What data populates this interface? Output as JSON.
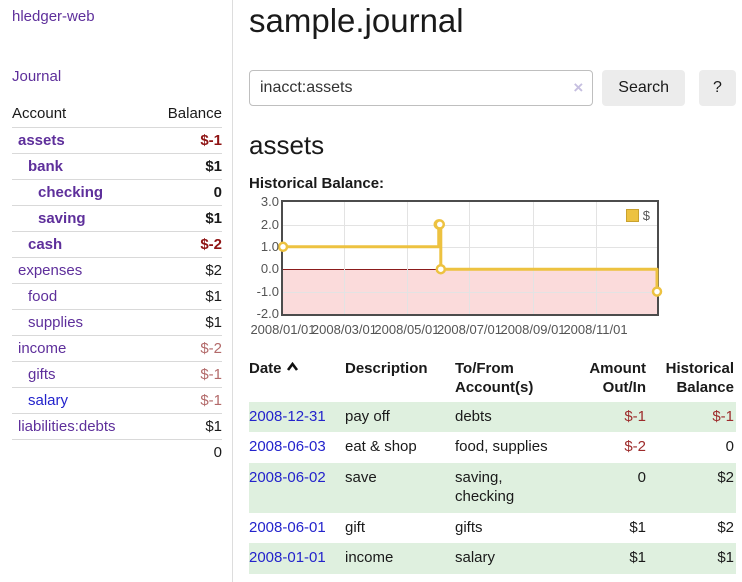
{
  "sidebar": {
    "brand": "hledger-web",
    "nav": {
      "journal": "Journal"
    },
    "accounts_table": {
      "col_account": "Account",
      "col_balance": "Balance",
      "accounts": [
        {
          "name": "assets",
          "balance": "$-1",
          "level": 1,
          "bold": true,
          "balance_style": "neg-strong"
        },
        {
          "name": "bank",
          "balance": "$1",
          "level": 2,
          "bold": true,
          "balance_style": "pos"
        },
        {
          "name": "checking",
          "balance": "0",
          "level": 3,
          "bold": true,
          "balance_style": "pos"
        },
        {
          "name": "saving",
          "balance": "$1",
          "level": 3,
          "bold": true,
          "balance_style": "pos"
        },
        {
          "name": "cash",
          "balance": "$-2",
          "level": 2,
          "bold": true,
          "balance_style": "neg-strong"
        },
        {
          "name": "expenses",
          "balance": "$2",
          "level": 1,
          "bold": false,
          "balance_style": "pos"
        },
        {
          "name": "food",
          "balance": "$1",
          "level": 2,
          "bold": false,
          "balance_style": "pos"
        },
        {
          "name": "supplies",
          "balance": "$1",
          "level": 2,
          "bold": false,
          "balance_style": "pos"
        },
        {
          "name": "income",
          "balance": "$-2",
          "level": 1,
          "bold": false,
          "balance_style": "neg-soft"
        },
        {
          "name": "gifts",
          "balance": "$-1",
          "level": 2,
          "bold": false,
          "balance_style": "neg-soft"
        },
        {
          "name": "salary",
          "balance": "$-1",
          "level": 2,
          "bold": false,
          "balance_style": "neg-soft",
          "link_color": "blue"
        },
        {
          "name": "liabilities:debts",
          "balance": "$1",
          "level": 1,
          "bold": false,
          "balance_style": "pos"
        }
      ],
      "total": "0"
    }
  },
  "header": {
    "title": "sample.journal"
  },
  "search": {
    "query": "inacct:assets",
    "clear_icon": "×",
    "search_label": "Search",
    "help_label": "?"
  },
  "account_page": {
    "heading": "assets",
    "chart_title": "Historical Balance:"
  },
  "chart_data": {
    "type": "line",
    "step": true,
    "title": "Historical Balance:",
    "series": [
      {
        "name": "$",
        "color": "#edc240",
        "points": [
          [
            "2008-01-01",
            1
          ],
          [
            "2008-06-01",
            2
          ],
          [
            "2008-06-02",
            2
          ],
          [
            "2008-06-03",
            0
          ],
          [
            "2008-12-31",
            -1
          ]
        ]
      }
    ],
    "x_range": [
      "2008-01-01",
      "2008-12-31"
    ],
    "x_ticks": [
      "2008/01/01",
      "2008/03/01",
      "2008/05/01",
      "2008/07/01",
      "2008/09/01",
      "2008/11/01"
    ],
    "y_ticks": [
      3.0,
      2.0,
      1.0,
      0.0,
      -1.0,
      -2.0
    ],
    "ylim": [
      -2.0,
      3.0
    ],
    "grid": true,
    "legend": [
      "$"
    ],
    "legend_position": "top-right",
    "negative_fill": "#fbdbdb",
    "zero_line_color": "#8b1b1b"
  },
  "register": {
    "columns": [
      "Date",
      "Description",
      "To/From Account(s)",
      "Amount Out/In",
      "Historical Balance"
    ],
    "sort": "date-ascending",
    "rows": [
      {
        "date": "2008-12-31",
        "description": "pay off",
        "accounts": "debts",
        "amount": "$-1",
        "balance": "$-1"
      },
      {
        "date": "2008-06-03",
        "description": "eat & shop",
        "accounts": "food, supplies",
        "amount": "$-2",
        "balance": "0"
      },
      {
        "date": "2008-06-02",
        "description": "save",
        "accounts": "saving, checking",
        "amount": "0",
        "balance": "$2"
      },
      {
        "date": "2008-06-01",
        "description": "gift",
        "accounts": "gifts",
        "amount": "$1",
        "balance": "$2"
      },
      {
        "date": "2008-01-01",
        "description": "income",
        "accounts": "salary",
        "amount": "$1",
        "balance": "$1"
      }
    ]
  },
  "colors": {
    "link_purple": "#5e2f9b",
    "link_blue": "#2323cc",
    "negative_strong": "#8f1414",
    "negative_soft": "#b36a6a",
    "negative_table": "#9d2b2b",
    "series_gold": "#edc240",
    "negative_region_fill": "#fbdbdb",
    "zero_line": "#8b1b1b",
    "row_green": "#dff0df",
    "axis_text": "#545454"
  }
}
